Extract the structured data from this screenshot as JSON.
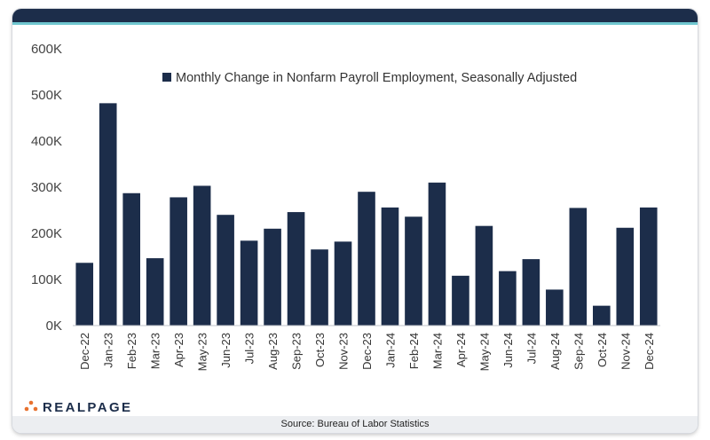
{
  "chart_data": {
    "type": "bar",
    "title": "",
    "xlabel": "",
    "ylabel": "",
    "categories": [
      "Dec-22",
      "Jan-23",
      "Feb-23",
      "Mar-23",
      "Apr-23",
      "May-23",
      "Jun-23",
      "Jul-23",
      "Aug-23",
      "Sep-23",
      "Oct-23",
      "Nov-23",
      "Dec-23",
      "Jan-24",
      "Feb-24",
      "Mar-24",
      "Apr-24",
      "May-24",
      "Jun-24",
      "Jul-24",
      "Aug-24",
      "Sep-24",
      "Oct-24",
      "Nov-24",
      "Dec-24"
    ],
    "series": [
      {
        "name": "Monthly Change in Nonfarm Payroll Employment, Seasonally Adjusted",
        "color": "#1c2d4a",
        "values": [
          136,
          482,
          287,
          146,
          278,
          303,
          240,
          184,
          210,
          246,
          165,
          182,
          290,
          256,
          236,
          310,
          108,
          216,
          118,
          144,
          78,
          255,
          43,
          212,
          256
        ]
      }
    ],
    "ylim": [
      0,
      600
    ],
    "yticks": [
      0,
      100,
      200,
      300,
      400,
      500,
      600
    ],
    "ytick_labels": [
      "0K",
      "100K",
      "200K",
      "300K",
      "400K",
      "500K",
      "600K"
    ],
    "grid": false,
    "legend_position": "top-center"
  },
  "footer": {
    "source": "Source: Bureau of Labor Statistics"
  },
  "logo": {
    "text": "REALPAGE"
  },
  "colors": {
    "header": "#1c2d4a",
    "accent_line": "#6fc6cf",
    "bar": "#1c2d4a",
    "logo_dots": "#e8712f"
  }
}
